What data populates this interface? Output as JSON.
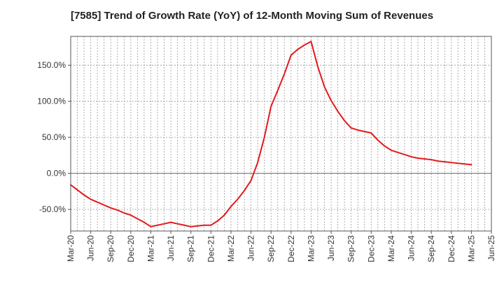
{
  "chart_data": {
    "type": "line",
    "title": "[7585]  Trend of Growth Rate (YoY) of 12-Month Moving Sum of Revenues",
    "xlabel": "",
    "ylabel": "",
    "x_tick_labels": [
      "Mar-20",
      "Jun-20",
      "Sep-20",
      "Dec-20",
      "Mar-21",
      "Jun-21",
      "Sep-21",
      "Dec-21",
      "Mar-22",
      "Jun-22",
      "Sep-22",
      "Dec-22",
      "Mar-23",
      "Jun-23",
      "Sep-23",
      "Dec-23",
      "Mar-24",
      "Jun-24",
      "Sep-24",
      "Dec-24",
      "Mar-25",
      "Jun-25"
    ],
    "y_ticks": [
      -50,
      0,
      50,
      100,
      150
    ],
    "y_tick_labels": [
      "-50.0%",
      "0.0%",
      "50.0%",
      "100.0%",
      "150.0%"
    ],
    "ylim": [
      -80,
      190
    ],
    "grid": true,
    "line_color": "#e31a1c",
    "series": [
      {
        "x": [
          "Mar-20",
          "Apr-20",
          "May-20",
          "Jun-20",
          "Jul-20",
          "Aug-20",
          "Sep-20",
          "Oct-20",
          "Nov-20",
          "Dec-20",
          "Jan-21",
          "Feb-21",
          "Mar-21",
          "Apr-21",
          "May-21",
          "Jun-21",
          "Jul-21",
          "Aug-21",
          "Sep-21",
          "Oct-21",
          "Nov-21",
          "Dec-21",
          "Jan-22",
          "Feb-22",
          "Mar-22",
          "Apr-22",
          "May-22",
          "Jun-22",
          "Jul-22",
          "Aug-22",
          "Sep-22",
          "Oct-22",
          "Nov-22",
          "Dec-22",
          "Jan-23",
          "Feb-23",
          "Mar-23",
          "Apr-23",
          "May-23",
          "Jun-23",
          "Jul-23",
          "Aug-23",
          "Sep-23",
          "Oct-23",
          "Nov-23",
          "Dec-23",
          "Jan-24",
          "Feb-24",
          "Mar-24",
          "Apr-24",
          "May-24",
          "Jun-24",
          "Jul-24",
          "Aug-24",
          "Sep-24",
          "Oct-24",
          "Nov-24",
          "Dec-24",
          "Jan-25",
          "Feb-25",
          "Mar-25"
        ],
        "values": [
          -16,
          -23,
          -30,
          -36,
          -40,
          -44,
          -48,
          -51,
          -55,
          -58,
          -63,
          -68,
          -74,
          -72,
          -70,
          -68,
          -70,
          -72,
          -74,
          -73,
          -72,
          -72,
          -66,
          -58,
          -46,
          -36,
          -24,
          -10,
          15,
          50,
          93,
          115,
          138,
          164,
          172,
          178,
          183,
          148,
          120,
          101,
          86,
          73,
          63,
          60,
          58,
          56,
          46,
          38,
          32,
          29,
          26,
          23,
          21,
          20,
          19,
          17,
          16,
          15,
          14,
          13,
          12
        ]
      }
    ]
  }
}
